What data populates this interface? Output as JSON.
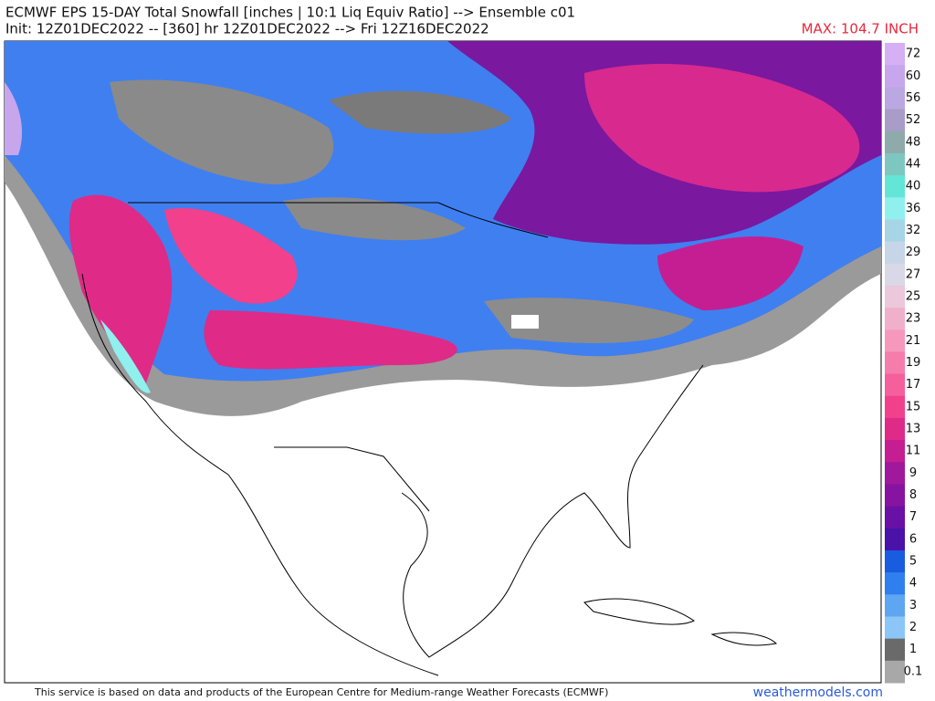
{
  "header": {
    "title": "ECMWF EPS 15-DAY Total Snowfall [inches | 10:1 Liq Equiv Ratio] --> Ensemble c01",
    "subtitle": "Init: 12Z01DEC2022 -- [360] hr 12Z01DEC2022 --> Fri 12Z16DEC2022",
    "max_label": "MAX: 104.7 INCH"
  },
  "colorbar": [
    {
      "label": "72",
      "color": "#d6b0f4"
    },
    {
      "label": "60",
      "color": "#c8a6ee"
    },
    {
      "label": "56",
      "color": "#bba8e2"
    },
    {
      "label": "52",
      "color": "#a99cc8"
    },
    {
      "label": "48",
      "color": "#8faaaa"
    },
    {
      "label": "44",
      "color": "#7dc7c0"
    },
    {
      "label": "40",
      "color": "#63e6d6"
    },
    {
      "label": "36",
      "color": "#8ff0ee"
    },
    {
      "label": "32",
      "color": "#a6d6e6"
    },
    {
      "label": "29",
      "color": "#c6d6e8"
    },
    {
      "label": "27",
      "color": "#d8d8e6"
    },
    {
      "label": "25",
      "color": "#ecc8dc"
    },
    {
      "label": "23",
      "color": "#f0b0cc"
    },
    {
      "label": "21",
      "color": "#f598bc"
    },
    {
      "label": "19",
      "color": "#f57cab"
    },
    {
      "label": "17",
      "color": "#f5609c"
    },
    {
      "label": "15",
      "color": "#f2408c"
    },
    {
      "label": "13",
      "color": "#e02a88"
    },
    {
      "label": "11",
      "color": "#c41e92"
    },
    {
      "label": "9",
      "color": "#a0189c"
    },
    {
      "label": "8",
      "color": "#8614a0"
    },
    {
      "label": "7",
      "color": "#6a10a4"
    },
    {
      "label": "6",
      "color": "#4a12a8"
    },
    {
      "label": "5",
      "color": "#1a5ce0"
    },
    {
      "label": "4",
      "color": "#2f7fee"
    },
    {
      "label": "3",
      "color": "#5ea6f2"
    },
    {
      "label": "2",
      "color": "#8cc6f8"
    },
    {
      "label": "1",
      "color": "#6a6a6a"
    },
    {
      "label": "0.1",
      "color": "#a8a8a8"
    }
  ],
  "footer": {
    "credit": "This service is based on data and products of the European Centre for Medium-range Weather Forecasts (ECMWF)",
    "site": "weathermodels.com"
  }
}
